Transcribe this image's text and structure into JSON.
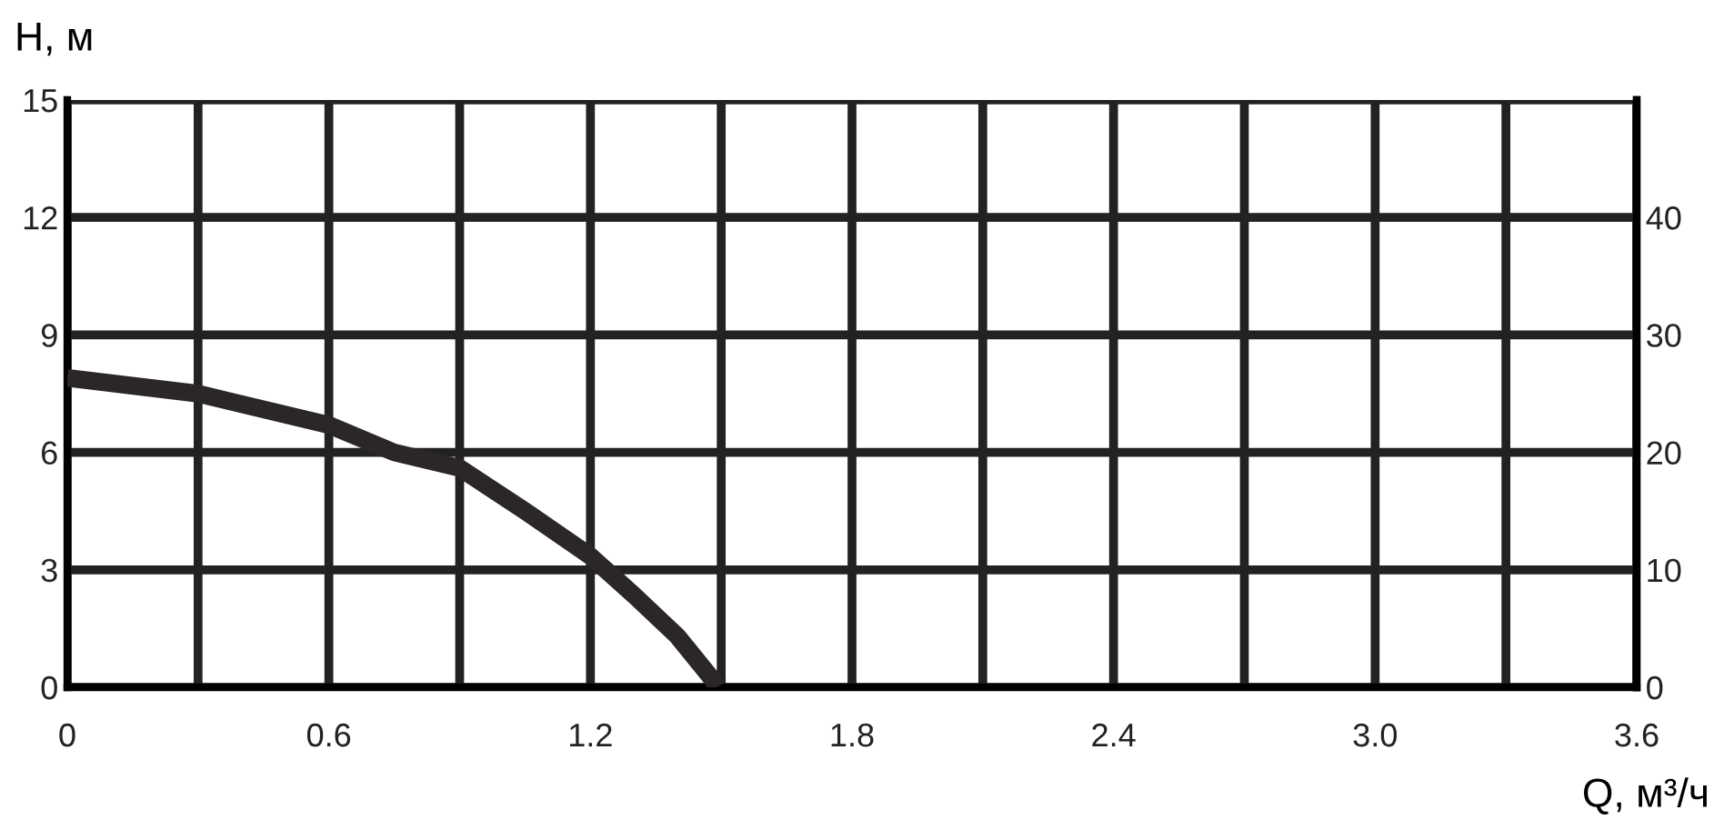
{
  "chart_data": {
    "type": "line",
    "xlabel": "Q, м³/ч",
    "ylabel": "H, м",
    "series": [
      {
        "color": "#2b2726",
        "x": [
          0,
          0.3,
          0.6,
          0.75,
          0.9,
          1.05,
          1.2,
          1.3,
          1.4,
          1.48,
          1.49
        ],
        "values": [
          7.9,
          7.5,
          6.7,
          6.0,
          5.6,
          4.5,
          3.35,
          2.35,
          1.3,
          0.2,
          0
        ]
      }
    ],
    "xlim": [
      0,
      3.6
    ],
    "xticks": [
      0,
      {
        "value": 0.3,
        "label": null
      },
      0.6,
      {
        "value": 0.9,
        "label": null
      },
      1.2,
      {
        "value": 1.5,
        "label": null
      },
      1.8,
      {
        "value": 2.1,
        "label": null
      },
      2.4,
      {
        "value": 2.7,
        "label": null
      },
      {
        "value": 3.0,
        "label": "3.0"
      },
      {
        "value": 3.3,
        "label": null
      },
      3.6
    ],
    "ylim": [
      0,
      15
    ],
    "yticks": [
      0,
      3,
      6,
      9,
      12,
      15
    ],
    "y2lim": [
      0,
      50
    ],
    "y2ticks": [
      0,
      10,
      20,
      30,
      40
    ],
    "grid": true,
    "marker": "none",
    "line_style": "solid"
  }
}
